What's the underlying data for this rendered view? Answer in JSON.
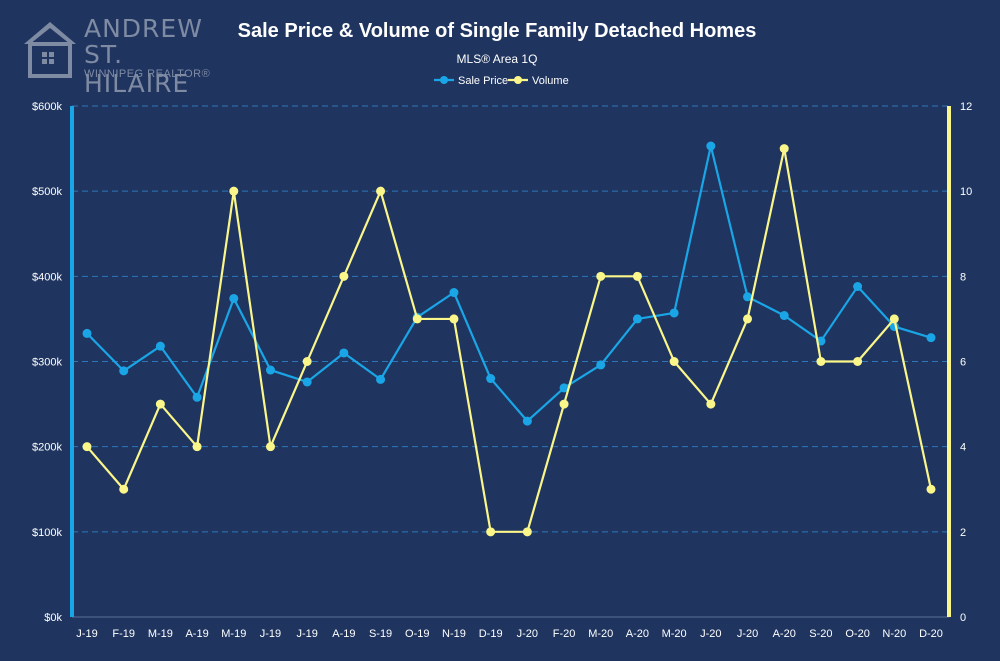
{
  "logo": {
    "line1": "ANDREW",
    "line2": "ST. HILAIRE",
    "line3": "WINNIPEG REALTOR®"
  },
  "chart_data": {
    "type": "line",
    "title": "Sale Price & Volume of Single Family Detached Homes",
    "subtitle": "MLS® Area 1Q",
    "categories": [
      "J-19",
      "F-19",
      "M-19",
      "A-19",
      "M-19",
      "J-19",
      "J-19",
      "A-19",
      "S-19",
      "O-19",
      "N-19",
      "D-19",
      "J-20",
      "F-20",
      "M-20",
      "A-20",
      "M-20",
      "J-20",
      "J-20",
      "A-20",
      "S-20",
      "O-20",
      "N-20",
      "D-20"
    ],
    "series": [
      {
        "name": "Sale Price",
        "axis": "left",
        "color": "#1aa6e6",
        "values": [
          333000,
          289000,
          318000,
          258000,
          374000,
          290000,
          276000,
          310000,
          279000,
          352000,
          381000,
          280000,
          230000,
          269000,
          296000,
          350000,
          357000,
          553000,
          376000,
          354000,
          324000,
          388000,
          341000,
          328000
        ]
      },
      {
        "name": "Volume",
        "axis": "right",
        "color": "#fbf68a",
        "values": [
          4,
          3,
          5,
          4,
          10,
          4,
          6,
          8,
          10,
          7,
          7,
          2,
          2,
          5,
          8,
          8,
          6,
          5,
          7,
          11,
          6,
          6,
          7,
          3
        ]
      }
    ],
    "left_axis": {
      "min": 0,
      "max": 600000,
      "ticks": [
        "$0k",
        "$100k",
        "$200k",
        "$300k",
        "$400k",
        "$500k",
        "$600k"
      ]
    },
    "right_axis": {
      "min": 0,
      "max": 12,
      "ticks": [
        "0",
        "2",
        "4",
        "6",
        "8",
        "10",
        "12"
      ]
    },
    "legend_position": "top-center",
    "grid": true
  }
}
